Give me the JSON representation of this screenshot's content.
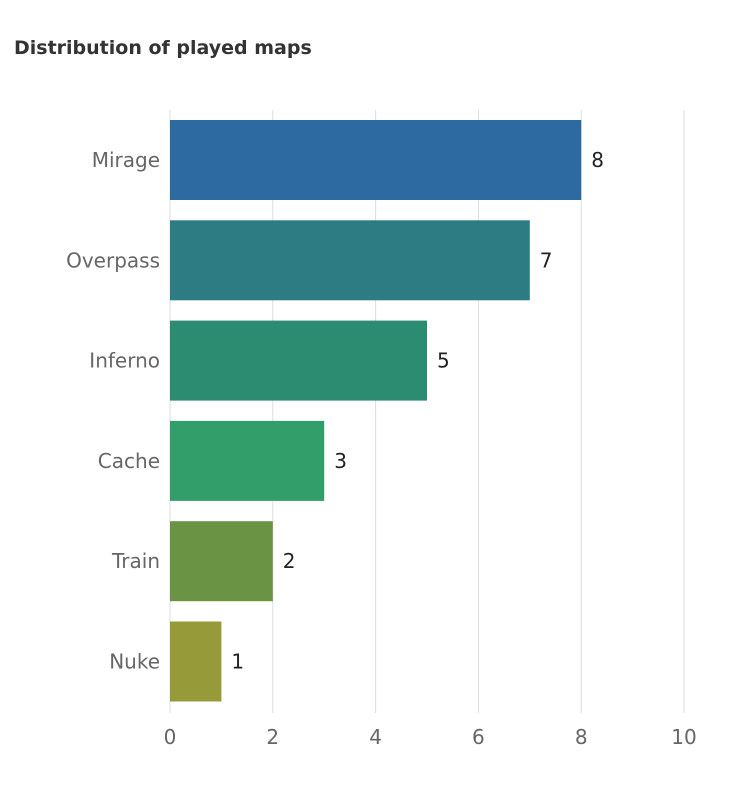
{
  "chart_data": {
    "type": "bar",
    "orientation": "horizontal",
    "title": "Distribution of played maps",
    "categories": [
      "Mirage",
      "Overpass",
      "Inferno",
      "Cache",
      "Train",
      "Nuke"
    ],
    "values": [
      8,
      7,
      5,
      3,
      2,
      1
    ],
    "colors": [
      "#2c6aa1",
      "#2d7c84",
      "#2c8c71",
      "#329e6a",
      "#6a9443",
      "#979a38"
    ],
    "xlim": [
      0,
      10
    ],
    "xticks": [
      0,
      2,
      4,
      6,
      8,
      10
    ],
    "grid": true,
    "data_labels": true,
    "legend": "none"
  }
}
